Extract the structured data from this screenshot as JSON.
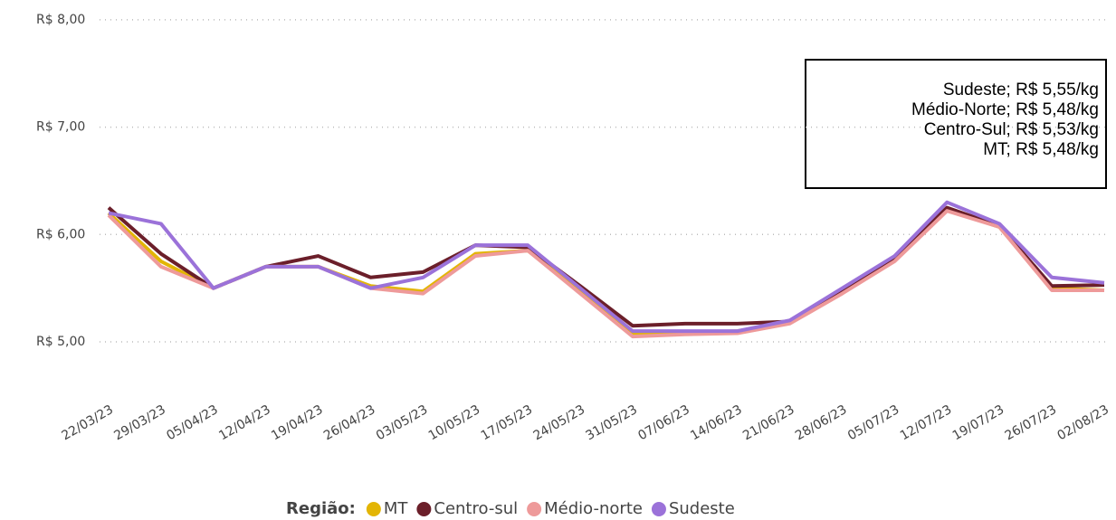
{
  "chart_data": {
    "type": "line",
    "categories": [
      "22/03/23",
      "29/03/23",
      "05/04/23",
      "12/04/23",
      "19/04/23",
      "26/04/23",
      "03/05/23",
      "10/05/23",
      "17/05/23",
      "24/05/23",
      "31/05/23",
      "07/06/23",
      "14/06/23",
      "21/06/23",
      "28/06/23",
      "05/07/23",
      "12/07/23",
      "19/07/23",
      "26/07/23",
      "02/08/23"
    ],
    "series": [
      {
        "name": "MT",
        "color": "#e3b505",
        "values": [
          6.2,
          5.75,
          5.5,
          5.7,
          5.7,
          5.52,
          5.47,
          5.82,
          5.85,
          5.47,
          5.07,
          5.08,
          5.1,
          5.18,
          5.47,
          5.76,
          6.23,
          6.07,
          5.5,
          5.48
        ]
      },
      {
        "name": "Centro-sul",
        "color": "#6b1f2a",
        "values": [
          6.25,
          5.82,
          5.5,
          5.7,
          5.8,
          5.6,
          5.65,
          5.9,
          5.88,
          5.52,
          5.15,
          5.17,
          5.17,
          5.19,
          5.48,
          5.78,
          6.25,
          6.08,
          5.52,
          5.53
        ]
      },
      {
        "name": "Médio-norte",
        "color": "#ee9a9a",
        "values": [
          6.18,
          5.7,
          5.5,
          5.7,
          5.7,
          5.5,
          5.45,
          5.8,
          5.85,
          5.45,
          5.05,
          5.07,
          5.08,
          5.17,
          5.45,
          5.75,
          6.22,
          6.07,
          5.48,
          5.48
        ]
      },
      {
        "name": "Sudeste",
        "color": "#9b72d9",
        "values": [
          6.2,
          6.1,
          5.5,
          5.7,
          5.7,
          5.5,
          5.6,
          5.9,
          5.9,
          5.5,
          5.1,
          5.1,
          5.1,
          5.2,
          5.5,
          5.8,
          6.3,
          6.1,
          5.6,
          5.55
        ]
      }
    ],
    "ylim": [
      4.6,
      8.0
    ],
    "yticks": [
      {
        "value": 5,
        "label": "R$ 5,00"
      },
      {
        "value": 6,
        "label": "R$ 6,00"
      },
      {
        "value": 7,
        "label": "R$ 7,00"
      },
      {
        "value": 8,
        "label": "R$ 8,00"
      }
    ],
    "grid": true,
    "legend_title": "Região:",
    "annotations": [
      "Sudeste; R$ 5,55/kg",
      "Médio-Norte; R$ 5,48/kg",
      "Centro-Sul; R$ 5,53/kg",
      "MT; R$ 5,48/kg"
    ]
  }
}
